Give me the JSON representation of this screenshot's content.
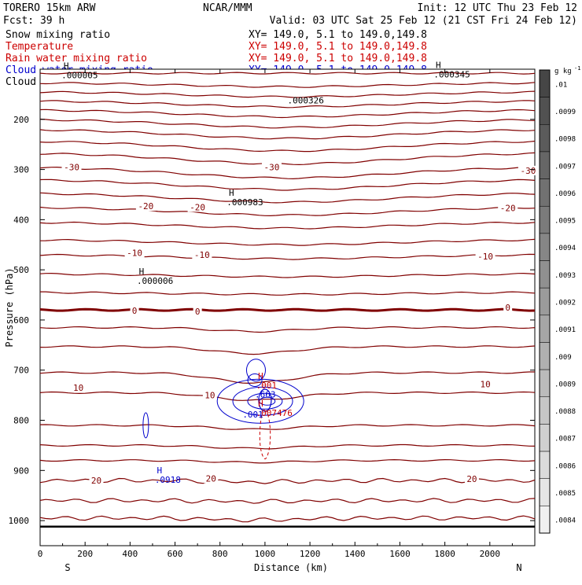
{
  "header": {
    "model": "TORERO  15km ARW",
    "center": "NCAR/MMM",
    "init": "Init: 12 UTC Thu 23 Feb 12",
    "fcst": "Fcst:   39 h",
    "valid": "Valid: 03 UTC Sat 25 Feb 12 (21 CST Fri 24 Feb 12)"
  },
  "fields": [
    {
      "label": "Snow mixing ratio",
      "xy": "XY= 149.0,  5.1 to 149.0,149.8",
      "color": "#000000"
    },
    {
      "label": "Temperature",
      "xy": "XY= 149.0,  5.1 to 149.0,149.8",
      "color": "#cc0000"
    },
    {
      "label": "Rain water mixing ratio",
      "xy": "XY= 149.0,  5.1 to 149.0,149.8",
      "color": "#cc0000"
    },
    {
      "label": "Cloud water mixing ratio",
      "xy": "XY= 149.0,  5.1 to 149.0,149.8",
      "color": "#0000cc"
    },
    {
      "label": "Cloud ice mixing ratio",
      "xy": "XY= 149.0,  5.1 to 149.0,149.8",
      "color": "#000000"
    }
  ],
  "colors": {
    "temperature": "#800000",
    "freezing": "#800000",
    "cloud_water": "#0000cc",
    "rain": "#cc0000",
    "axis": "#000000"
  },
  "chart_data": {
    "type": "contour",
    "xlabel": "Distance (km)",
    "ylabel": "Pressure (hPa)",
    "xlim": [
      0,
      2200
    ],
    "ylim": [
      1050,
      100
    ],
    "xticks": [
      0,
      200,
      400,
      600,
      800,
      1000,
      1200,
      1400,
      1600,
      1800,
      2000
    ],
    "yticks": [
      200,
      300,
      400,
      500,
      600,
      700,
      800,
      900,
      1000
    ],
    "x_end_labels": {
      "left": "S",
      "right": "N"
    },
    "surface_pressure": 1012,
    "temperature_isotherms": [
      {
        "base_p": 108
      },
      {
        "base_p": 127,
        "bump": 8
      },
      {
        "base_p": 145,
        "bump": 10
      },
      {
        "base_p": 163,
        "bump": 12
      },
      {
        "base_p": 181,
        "bump": 14
      },
      {
        "base_p": 200,
        "bump": 16
      },
      {
        "base_p": 220,
        "bump": 18
      },
      {
        "base_p": 243,
        "bump": 20
      },
      {
        "base_p": 267,
        "bump": 22
      },
      {
        "base_p": 295,
        "bump": 22,
        "label": "-30"
      },
      {
        "base_p": 320,
        "bump": 20
      },
      {
        "base_p": 347,
        "bump": 18
      },
      {
        "base_p": 375,
        "bump": 16,
        "label": "-20"
      },
      {
        "base_p": 405,
        "bump": 12
      },
      {
        "base_p": 440,
        "bump": 10
      },
      {
        "base_p": 470,
        "bump": 8,
        "label": "-10"
      },
      {
        "base_p": 508,
        "bump": 6
      },
      {
        "base_p": 545,
        "bump": 4
      },
      {
        "base_p": 580,
        "bump": 0,
        "label": "0",
        "freezing": true
      },
      {
        "base_p": 615,
        "dip": 8
      },
      {
        "base_p": 653,
        "dip": 14
      },
      {
        "base_p": 705,
        "dip": 20
      },
      {
        "base_p": 745,
        "dip": 15,
        "label": "10"
      },
      {
        "base_p": 810,
        "dip": 8
      },
      {
        "base_p": 850,
        "dip": 6
      },
      {
        "base_p": 880,
        "dip": 4
      },
      {
        "base_p": 920,
        "dip": 3,
        "label": "20"
      },
      {
        "base_p": 960,
        "dip": 2
      },
      {
        "base_p": 995,
        "dip": 4
      }
    ],
    "temperature_labels": [
      {
        "x": 140,
        "p": 295,
        "text": "-30"
      },
      {
        "x": 1030,
        "p": 295,
        "text": "-30"
      },
      {
        "x": 2170,
        "p": 302,
        "text": "-30"
      },
      {
        "x": 470,
        "p": 373,
        "text": "-20"
      },
      {
        "x": 700,
        "p": 375,
        "text": "-20"
      },
      {
        "x": 2080,
        "p": 377,
        "text": "-20"
      },
      {
        "x": 420,
        "p": 466,
        "text": "-10"
      },
      {
        "x": 720,
        "p": 470,
        "text": "-10"
      },
      {
        "x": 1980,
        "p": 473,
        "text": "-10"
      },
      {
        "x": 420,
        "p": 581,
        "text": "0"
      },
      {
        "x": 700,
        "p": 583,
        "text": "0"
      },
      {
        "x": 2080,
        "p": 575,
        "text": "0"
      },
      {
        "x": 170,
        "p": 735,
        "text": "10"
      },
      {
        "x": 755,
        "p": 750,
        "text": "10"
      },
      {
        "x": 1980,
        "p": 728,
        "text": "10"
      },
      {
        "x": 250,
        "p": 920,
        "text": "20"
      },
      {
        "x": 760,
        "p": 916,
        "text": "20"
      },
      {
        "x": 1920,
        "p": 917,
        "text": "20"
      }
    ],
    "extrema": [
      {
        "x": 95,
        "p": 112,
        "mark": "H",
        "value": ".000005",
        "color": "#000000"
      },
      {
        "x": 1750,
        "p": 110,
        "mark": "H",
        "value": ".000345",
        "color": "#000000"
      },
      {
        "x": 1100,
        "p": 162,
        "mark": "",
        "value": ".000326",
        "color": "#000000"
      },
      {
        "x": 830,
        "p": 365,
        "mark": "H",
        "value": ".000983",
        "color": "#000000"
      },
      {
        "x": 430,
        "p": 522,
        "mark": "H",
        "value": ".000006",
        "color": "#000000"
      },
      {
        "x": 960,
        "p": 730,
        "mark": "H",
        "value": ".001",
        "color": "#cc0000"
      },
      {
        "x": 960,
        "p": 785,
        "mark": "H",
        "value": ".007476",
        "color": "#cc0000"
      },
      {
        "x": 510,
        "p": 918,
        "mark": "H",
        "value": ".0918",
        "color": "#0000cc"
      },
      {
        "x": 900,
        "p": 788,
        "mark": "",
        "value": ".001",
        "color": "#0000cc"
      },
      {
        "x": 955,
        "p": 748,
        "mark": "",
        "value": ".663",
        "color": "#0000cc"
      }
    ],
    "colorbar": {
      "unit": "g kg",
      "unit_exponent": "-1",
      "labels": [
        ".01",
        ".0099",
        ".0098",
        ".0097",
        ".0096",
        ".0095",
        ".0094",
        ".0093",
        ".0092",
        ".0091",
        ".009",
        ".0089",
        ".0088",
        ".0087",
        ".0086",
        ".0085",
        ".0084"
      ]
    }
  }
}
